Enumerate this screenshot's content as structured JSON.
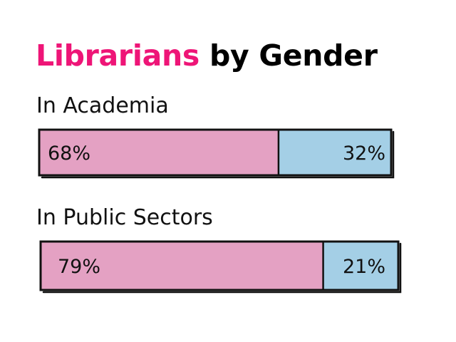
{
  "title": {
    "accent_text": "Librarians",
    "rest_text": "by Gender",
    "accent_color": "#ee1577"
  },
  "colors": {
    "female": "#e4a1c3",
    "male": "#a4cfe6",
    "outline": "#111111"
  },
  "chart_data": {
    "type": "bar",
    "orientation": "horizontal-stacked-100",
    "title": "Librarians by Gender",
    "categories": [
      "In Academia",
      "In Public Sectors"
    ],
    "series": [
      {
        "color": "#e4a1c3",
        "values": [
          68,
          79
        ],
        "labels": [
          "68%",
          "79%"
        ]
      },
      {
        "color": "#a4cfe6",
        "values": [
          32,
          21
        ],
        "labels": [
          "32%",
          "21%"
        ]
      }
    ],
    "xlim": [
      0,
      100
    ],
    "grid": false,
    "legend": "none"
  }
}
